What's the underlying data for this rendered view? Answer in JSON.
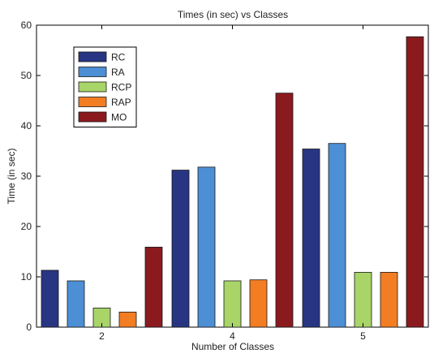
{
  "chart_data": {
    "type": "bar",
    "title": "Times (in sec) vs Classes",
    "xlabel": "Number of Classes",
    "ylabel": "Time (in sec)",
    "categories": [
      "2",
      "4",
      "5"
    ],
    "ylim": [
      0,
      60
    ],
    "yticks": [
      "0",
      "10",
      "20",
      "30",
      "40",
      "50",
      "60"
    ],
    "grid": false,
    "legend_position": "top-left",
    "series": [
      {
        "name": "RC",
        "color": "#283583",
        "values": [
          11.3,
          31.2,
          35.4
        ]
      },
      {
        "name": "RA",
        "color": "#4c8fd4",
        "values": [
          9.2,
          31.8,
          36.5
        ]
      },
      {
        "name": "RCP",
        "color": "#a8d468",
        "values": [
          3.8,
          9.2,
          10.9
        ]
      },
      {
        "name": "RAP",
        "color": "#f27d23",
        "values": [
          3.0,
          9.4,
          10.9
        ]
      },
      {
        "name": "MO",
        "color": "#8b1a1f",
        "values": [
          15.9,
          46.5,
          57.7
        ]
      }
    ]
  }
}
